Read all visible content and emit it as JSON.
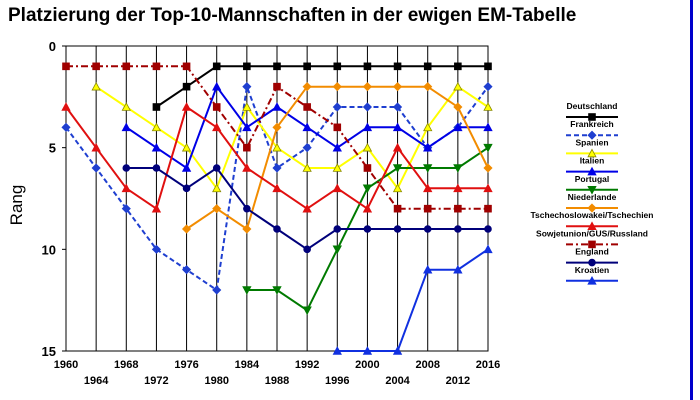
{
  "chart_data": {
    "type": "line",
    "title": "Platzierung der Top-10-Mannschaften in der ewigen EM-Tabelle",
    "xlabel": "",
    "ylabel": "Rang",
    "x": [
      1960,
      1964,
      1968,
      1972,
      1976,
      1980,
      1984,
      1988,
      1992,
      1996,
      2000,
      2004,
      2008,
      2012,
      2016
    ],
    "x_ticks_row1": [
      1960,
      1968,
      1976,
      1984,
      1992,
      2000,
      2008,
      2016
    ],
    "x_ticks_row2": [
      1964,
      1972,
      1980,
      1988,
      1996,
      2004,
      2012
    ],
    "y_ticks": [
      0,
      5,
      10,
      15
    ],
    "ylim": [
      0,
      15
    ],
    "y_inverted": true,
    "grid": "vertical",
    "legend_position": "right",
    "series": [
      {
        "name": "Deutschland",
        "color": "#000000",
        "dash": "solid",
        "marker": "square",
        "values": [
          null,
          null,
          null,
          3,
          2,
          1,
          1,
          1,
          1,
          1,
          1,
          1,
          1,
          1,
          1
        ]
      },
      {
        "name": "Frankreich",
        "color": "#1f3fd0",
        "dash": "dashed",
        "marker": "diamond",
        "values": [
          4,
          6,
          8,
          10,
          11,
          12,
          2,
          6,
          5,
          3,
          3,
          3,
          5,
          4,
          2
        ]
      },
      {
        "name": "Spanien",
        "color": "#ffff00",
        "dash": "solid",
        "marker": "triangle",
        "values": [
          null,
          2,
          3,
          4,
          5,
          7,
          3,
          5,
          6,
          6,
          5,
          7,
          4,
          2,
          3
        ]
      },
      {
        "name": "Italien",
        "color": "#0000e6",
        "dash": "solid",
        "marker": "triangle",
        "values": [
          null,
          null,
          4,
          5,
          6,
          2,
          4,
          3,
          4,
          5,
          4,
          4,
          5,
          4,
          4
        ]
      },
      {
        "name": "Portugal",
        "color": "#007a00",
        "dash": "solid",
        "marker": "triangle-down",
        "values": [
          null,
          null,
          null,
          null,
          null,
          null,
          12,
          12,
          13,
          10,
          7,
          6,
          6,
          6,
          5
        ]
      },
      {
        "name": "Niederlande",
        "color": "#f28c00",
        "dash": "solid",
        "marker": "diamond",
        "values": [
          null,
          null,
          null,
          null,
          9,
          8,
          9,
          4,
          2,
          2,
          2,
          2,
          2,
          3,
          6
        ]
      },
      {
        "name": "Tschechoslowakei/Tschechien",
        "color": "#e01010",
        "dash": "solid",
        "marker": "triangle",
        "values": [
          3,
          5,
          7,
          8,
          3,
          4,
          6,
          7,
          8,
          7,
          8,
          5,
          7,
          7,
          7
        ]
      },
      {
        "name": "Sowjetunion/GUS/Russland",
        "color": "#a00000",
        "dash": "dashdot",
        "marker": "square",
        "values": [
          1,
          1,
          1,
          1,
          1,
          3,
          5,
          2,
          3,
          4,
          6,
          8,
          8,
          8,
          8
        ]
      },
      {
        "name": "England",
        "color": "#00007a",
        "dash": "solid",
        "marker": "circle",
        "values": [
          null,
          null,
          6,
          6,
          7,
          6,
          8,
          9,
          10,
          9,
          9,
          9,
          9,
          9,
          9
        ]
      },
      {
        "name": "Kroatien",
        "color": "#1030e0",
        "dash": "solid",
        "marker": "triangle",
        "values": [
          null,
          null,
          null,
          null,
          null,
          null,
          null,
          null,
          null,
          15,
          15,
          15,
          11,
          11,
          10
        ]
      }
    ]
  }
}
